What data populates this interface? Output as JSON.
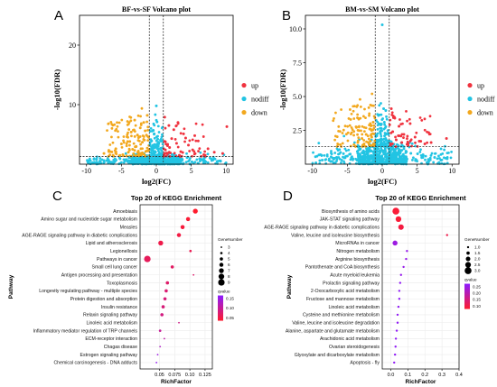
{
  "colors": {
    "up": "#f0333f",
    "nodiff": "#22c4e3",
    "down": "#f2a81e",
    "kegg_low": "#ff1b2d",
    "kegg_high": "#8c1bff",
    "threshold": "#333333"
  },
  "panels": {
    "A": {
      "letter": "A"
    },
    "B": {
      "letter": "B"
    },
    "C": {
      "letter": "C"
    },
    "D": {
      "letter": "D"
    }
  },
  "chart_data": [
    {
      "panel": "A",
      "type": "scatter",
      "title": "BF-vs-SF Volcano plot",
      "xlabel": "log2(FC)",
      "ylabel": "-log10(FDR)",
      "xlim": [
        -11,
        11
      ],
      "ylim": [
        0,
        25
      ],
      "xticks": [
        -10,
        -5,
        0,
        5,
        10
      ],
      "yticks": [
        10,
        20
      ],
      "thresholds": {
        "x": [
          -1,
          1
        ],
        "y": 1.3
      },
      "legend_position": "right",
      "legend": [
        "up",
        "nodiff",
        "down"
      ],
      "summary_points": {
        "up": [
          [
            1.2,
            7.9
          ],
          [
            1.8,
            6.5
          ],
          [
            2.5,
            5.8
          ],
          [
            3.1,
            7.0
          ],
          [
            3.9,
            5.1
          ],
          [
            2.2,
            4.3
          ],
          [
            4.6,
            3.2
          ],
          [
            5.2,
            2.4
          ],
          [
            6.0,
            3.9
          ],
          [
            7.4,
            2.6
          ],
          [
            8.3,
            2.0
          ],
          [
            9.5,
            1.8
          ],
          [
            10.1,
            6.3
          ],
          [
            2.9,
            3.5
          ],
          [
            3.5,
            2.1
          ],
          [
            1.6,
            3.1
          ],
          [
            4.2,
            4.4
          ],
          [
            1.3,
            2.4
          ],
          [
            2.0,
            1.9
          ],
          [
            6.8,
            1.6
          ],
          [
            1.1,
            1.6
          ],
          [
            3.3,
            1.5
          ],
          [
            5.5,
            4.8
          ],
          [
            1.9,
            2.8
          ]
        ],
        "nodiff": [
          [
            -8.5,
            0.3
          ],
          [
            -7.1,
            0.6
          ],
          [
            -6.0,
            0.4
          ],
          [
            -5.2,
            0.9
          ],
          [
            -4.5,
            0.7
          ],
          [
            -3.9,
            1.1
          ],
          [
            -3.0,
            0.5
          ],
          [
            -2.4,
            1.0
          ],
          [
            -1.8,
            0.6
          ],
          [
            -1.2,
            1.2
          ],
          [
            -0.9,
            3.3
          ],
          [
            -0.6,
            2.8
          ],
          [
            -0.3,
            5.1
          ],
          [
            0.0,
            9.8
          ],
          [
            0.2,
            4.2
          ],
          [
            0.5,
            2.6
          ],
          [
            0.8,
            1.8
          ],
          [
            1.4,
            0.8
          ],
          [
            2.1,
            0.5
          ],
          [
            2.8,
            1.0
          ],
          [
            3.6,
            0.6
          ],
          [
            4.4,
            1.1
          ],
          [
            5.1,
            0.4
          ],
          [
            6.2,
            0.9
          ],
          [
            7.0,
            0.3
          ],
          [
            8.1,
            0.7
          ],
          [
            9.2,
            0.5
          ],
          [
            -0.5,
            1.5
          ],
          [
            0.4,
            1.2
          ],
          [
            -0.2,
            0.6
          ],
          [
            0.1,
            7.1
          ]
        ],
        "down": [
          [
            -1.3,
            8.2
          ],
          [
            -1.8,
            7.0
          ],
          [
            -2.3,
            6.1
          ],
          [
            -3.1,
            7.4
          ],
          [
            -3.6,
            5.4
          ],
          [
            -4.2,
            4.6
          ],
          [
            -2.7,
            4.9
          ],
          [
            -5.0,
            3.4
          ],
          [
            -5.8,
            2.6
          ],
          [
            -6.6,
            2.1
          ],
          [
            -7.5,
            1.8
          ],
          [
            -1.6,
            5.6
          ],
          [
            -2.0,
            3.7
          ],
          [
            -2.9,
            3.0
          ],
          [
            -3.4,
            2.5
          ],
          [
            -4.0,
            2.0
          ],
          [
            -4.8,
            1.6
          ],
          [
            -1.4,
            2.2
          ],
          [
            -2.2,
            2.6
          ],
          [
            -3.8,
            3.8
          ],
          [
            -1.1,
            4.5
          ],
          [
            -1.9,
            1.7
          ],
          [
            -6.2,
            1.5
          ],
          [
            -2.6,
            1.5
          ]
        ]
      }
    },
    {
      "panel": "B",
      "type": "scatter",
      "title": "BM-vs-SM Volcano plot",
      "xlabel": "log2(FC)",
      "ylabel": "-log10(FDR)",
      "xlim": [
        -11,
        11
      ],
      "ylim": [
        0,
        11
      ],
      "xticks": [
        -10,
        -5,
        0,
        5,
        10
      ],
      "yticks": [
        2.5,
        5.0,
        7.5,
        10.0
      ],
      "thresholds": {
        "x": [
          -1,
          1
        ],
        "y": 1.3
      },
      "legend_position": "right",
      "legend": [
        "up",
        "nodiff",
        "down"
      ],
      "summary_points": {
        "up": [
          [
            1.3,
            4.1
          ],
          [
            1.8,
            3.4
          ],
          [
            2.4,
            2.8
          ],
          [
            3.1,
            2.2
          ],
          [
            4.0,
            3.0
          ],
          [
            4.7,
            2.0
          ],
          [
            5.3,
            1.7
          ],
          [
            6.1,
            1.5
          ],
          [
            7.0,
            1.6
          ],
          [
            9.2,
            1.9
          ],
          [
            1.5,
            2.4
          ],
          [
            2.0,
            1.8
          ],
          [
            2.8,
            1.6
          ],
          [
            3.6,
            1.5
          ],
          [
            1.2,
            1.5
          ],
          [
            2.3,
            2.1
          ]
        ],
        "nodiff": [
          [
            -9.5,
            0.1
          ],
          [
            -8.6,
            0.3
          ],
          [
            -7.4,
            0.2
          ],
          [
            -6.5,
            0.5
          ],
          [
            -5.8,
            0.3
          ],
          [
            -5.0,
            0.6
          ],
          [
            -4.2,
            0.4
          ],
          [
            -3.5,
            0.8
          ],
          [
            -2.8,
            0.5
          ],
          [
            -2.1,
            0.9
          ],
          [
            -1.5,
            0.6
          ],
          [
            -0.9,
            1.1
          ],
          [
            -0.5,
            1.7
          ],
          [
            -0.2,
            2.9
          ],
          [
            0.0,
            10.3
          ],
          [
            0.2,
            4.1
          ],
          [
            0.5,
            2.2
          ],
          [
            0.8,
            1.3
          ],
          [
            1.3,
            0.7
          ],
          [
            1.9,
            0.4
          ],
          [
            2.6,
            0.9
          ],
          [
            3.4,
            0.5
          ],
          [
            4.1,
            0.8
          ],
          [
            4.9,
            0.3
          ],
          [
            5.7,
            0.6
          ],
          [
            6.6,
            0.2
          ],
          [
            7.5,
            0.5
          ],
          [
            8.4,
            0.3
          ],
          [
            9.3,
            0.4
          ],
          [
            0.3,
            3.1
          ],
          [
            -0.3,
            2.4
          ]
        ],
        "down": [
          [
            -1.3,
            3.1
          ],
          [
            -1.8,
            2.6
          ],
          [
            -2.3,
            2.2
          ],
          [
            -2.9,
            1.9
          ],
          [
            -3.5,
            1.6
          ],
          [
            -1.5,
            2.0
          ],
          [
            -2.0,
            1.6
          ],
          [
            -1.2,
            1.5
          ],
          [
            -2.6,
            1.5
          ],
          [
            -1.7,
            1.7
          ]
        ]
      }
    },
    {
      "panel": "C",
      "type": "scatter",
      "title": "Top 20 of KEGG Enrichment",
      "xlabel": "RichFactor",
      "ylabel": "Pathway",
      "xlim": [
        0.018,
        0.137
      ],
      "xticks": [
        0.05,
        0.075,
        0.1,
        0.125
      ],
      "xtick_labels": [
        "0.05",
        "0.075",
        "0.10",
        "0.125"
      ],
      "size_legend_title": "GeneNumber",
      "size_legend": [
        3,
        4,
        5,
        6,
        7,
        8,
        9
      ],
      "color_legend_title": "qvalue",
      "color_legend_ticks": [
        "0.15",
        "0.10",
        "0.05"
      ],
      "q_range": [
        0.03,
        0.17
      ],
      "pathways": [
        {
          "name": "Amoebiasis",
          "rich": 0.109,
          "genes": 7,
          "q": 0.03
        },
        {
          "name": "Amino sugar and nucleotide sugar metabolism",
          "rich": 0.097,
          "genes": 6,
          "q": 0.035
        },
        {
          "name": "Measles",
          "rich": 0.088,
          "genes": 6,
          "q": 0.04
        },
        {
          "name": "AGE-RAGE signaling pathway in diabetic complications",
          "rich": 0.082,
          "genes": 6,
          "q": 0.045
        },
        {
          "name": "Lipid and atherosclerosis",
          "rich": 0.052,
          "genes": 7,
          "q": 0.05
        },
        {
          "name": "Legionellosis",
          "rich": 0.101,
          "genes": 4,
          "q": 0.055
        },
        {
          "name": "Pathways in cancer",
          "rich": 0.03,
          "genes": 9,
          "q": 0.06
        },
        {
          "name": "Small cell lung cancer",
          "rich": 0.071,
          "genes": 5,
          "q": 0.065
        },
        {
          "name": "Antigen processing and presentation",
          "rich": 0.106,
          "genes": 3,
          "q": 0.07
        },
        {
          "name": "Toxoplasmosis",
          "rich": 0.063,
          "genes": 5,
          "q": 0.07
        },
        {
          "name": "Longevity regulating pathway - multiple species",
          "rich": 0.061,
          "genes": 5,
          "q": 0.075
        },
        {
          "name": "Protein digestion and absorption",
          "rich": 0.059,
          "genes": 5,
          "q": 0.08
        },
        {
          "name": "Insulin resistance",
          "rich": 0.056,
          "genes": 5,
          "q": 0.08
        },
        {
          "name": "Relaxin signaling pathway",
          "rich": 0.054,
          "genes": 5,
          "q": 0.085
        },
        {
          "name": "Linoleic acid metabolism",
          "rich": 0.082,
          "genes": 3,
          "q": 0.09
        },
        {
          "name": "Inflammatory mediator regulation of TRP channels",
          "rich": 0.051,
          "genes": 4,
          "q": 0.1
        },
        {
          "name": "ECM-receptor interaction",
          "rich": 0.058,
          "genes": 3,
          "q": 0.11
        },
        {
          "name": "Chagas disease",
          "rich": 0.051,
          "genes": 3,
          "q": 0.13
        },
        {
          "name": "Estrogen signaling pathway",
          "rich": 0.047,
          "genes": 3,
          "q": 0.15
        },
        {
          "name": "Chemical carcinogenesis - DNA adducts",
          "rich": 0.045,
          "genes": 3,
          "q": 0.16
        }
      ]
    },
    {
      "panel": "D",
      "type": "scatter",
      "title": "Top 20 of KEGG Enrichment",
      "xlabel": "RichFactor",
      "ylabel": "Pathway",
      "xlim": [
        -0.05,
        0.4
      ],
      "xticks": [
        0.0,
        0.1,
        0.2,
        0.3,
        0.4
      ],
      "xtick_labels": [
        "0.0",
        "0.1",
        "0.2",
        "0.3",
        "0.4"
      ],
      "size_legend_title": "GeneNumber",
      "size_legend": [
        "1.0",
        "1.5",
        "2.0",
        "2.5",
        "3.0"
      ],
      "color_legend_title": "qvalue",
      "color_legend_ticks": [
        "0.25",
        "0.20",
        "0.15",
        "0.10"
      ],
      "q_range": [
        0.07,
        0.28
      ],
      "pathways": [
        {
          "name": "Biosynthesis of amino acids",
          "rich": 0.03,
          "genes": 3,
          "q": 0.08
        },
        {
          "name": "JAK-STAT signaling pathway",
          "rich": 0.045,
          "genes": 2.5,
          "q": 0.08
        },
        {
          "name": "AGE-RAGE signaling pathway in diabetic complications",
          "rich": 0.06,
          "genes": 2.4,
          "q": 0.09
        },
        {
          "name": "Valine, leucine and isoleucine biosynthesis",
          "rich": 0.33,
          "genes": 1,
          "q": 0.1
        },
        {
          "name": "MicroRNAs in cancer",
          "rich": 0.025,
          "genes": 2.2,
          "q": 0.25
        },
        {
          "name": "Nitrogen metabolism",
          "rich": 0.095,
          "genes": 1,
          "q": 0.26
        },
        {
          "name": "Arginine biosynthesis",
          "rich": 0.09,
          "genes": 1,
          "q": 0.26
        },
        {
          "name": "Pantothenate and CoA biosynthesis",
          "rich": 0.075,
          "genes": 1,
          "q": 0.26
        },
        {
          "name": "Acute myeloid leukemia",
          "rich": 0.06,
          "genes": 1,
          "q": 0.26
        },
        {
          "name": "Prolactin signaling pathway",
          "rich": 0.055,
          "genes": 1,
          "q": 0.27
        },
        {
          "name": "2-Oxocarboxylic acid metabolism",
          "rich": 0.05,
          "genes": 1,
          "q": 0.27
        },
        {
          "name": "Fructose and mannose metabolism",
          "rich": 0.05,
          "genes": 1,
          "q": 0.27
        },
        {
          "name": "Linoleic acid metabolism",
          "rich": 0.045,
          "genes": 1,
          "q": 0.27
        },
        {
          "name": "Cysteine and methionine metabolism",
          "rich": 0.04,
          "genes": 1,
          "q": 0.27
        },
        {
          "name": "Valine, leucine and isoleucine degradation",
          "rich": 0.04,
          "genes": 1,
          "q": 0.27
        },
        {
          "name": "Alanine, aspartate and glutamate metabolism",
          "rich": 0.035,
          "genes": 1,
          "q": 0.27
        },
        {
          "name": "Arachidonic acid metabolism",
          "rich": 0.03,
          "genes": 1,
          "q": 0.27
        },
        {
          "name": "Ovarian steroidogenesis",
          "rich": 0.028,
          "genes": 1,
          "q": 0.27
        },
        {
          "name": "Glyoxylate and dicarboxylate metabolism",
          "rich": 0.025,
          "genes": 1,
          "q": 0.27
        },
        {
          "name": "Apoptosis - fly",
          "rich": 0.02,
          "genes": 1,
          "q": 0.27
        }
      ]
    }
  ]
}
